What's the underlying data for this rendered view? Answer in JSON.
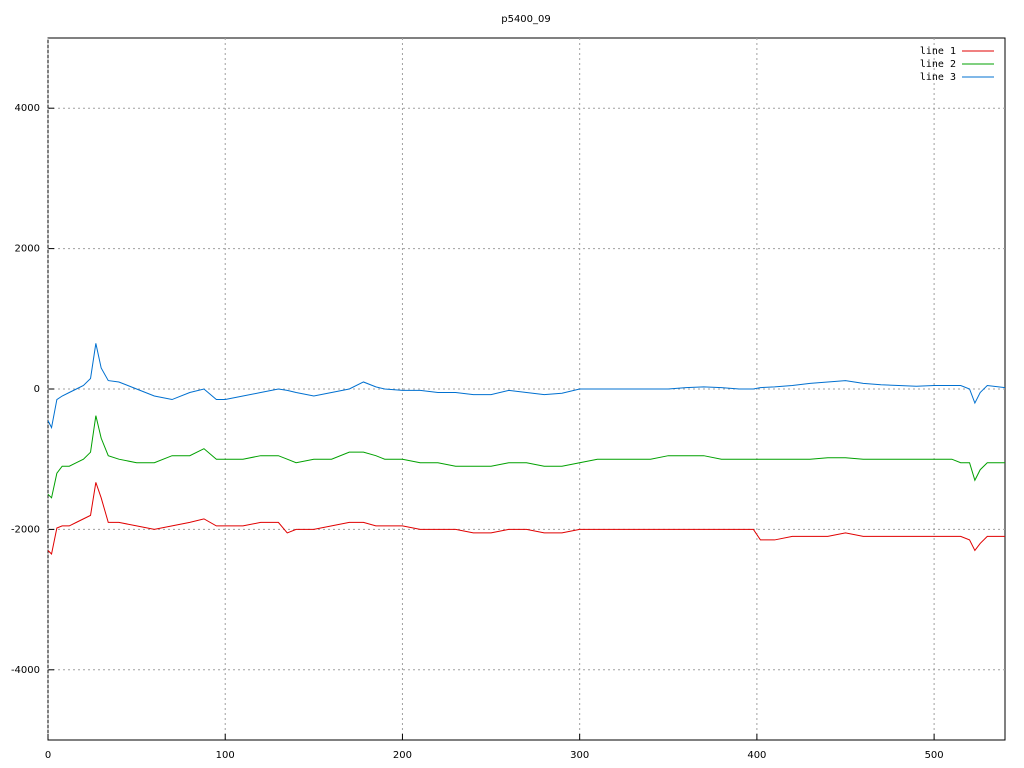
{
  "chart_data": {
    "type": "line",
    "title": "p5400_09",
    "x": [
      0,
      2,
      5,
      8,
      12,
      16,
      20,
      24,
      27,
      30,
      34,
      40,
      50,
      60,
      70,
      80,
      88,
      95,
      100,
      110,
      120,
      130,
      135,
      140,
      150,
      160,
      170,
      178,
      185,
      190,
      200,
      210,
      220,
      230,
      240,
      250,
      260,
      270,
      280,
      290,
      300,
      310,
      320,
      330,
      340,
      350,
      360,
      370,
      380,
      390,
      398,
      402,
      410,
      420,
      430,
      440,
      450,
      460,
      470,
      480,
      490,
      500,
      510,
      515,
      520,
      523,
      526,
      530,
      540
    ],
    "series": [
      {
        "name": "line 1",
        "color": "#e00000",
        "values": [
          -2300,
          -2350,
          -1980,
          -1950,
          -1950,
          -1900,
          -1850,
          -1800,
          -1330,
          -1550,
          -1900,
          -1900,
          -1950,
          -2000,
          -1950,
          -1900,
          -1850,
          -1950,
          -1950,
          -1950,
          -1900,
          -1900,
          -2050,
          -2000,
          -2000,
          -1950,
          -1900,
          -1900,
          -1950,
          -1950,
          -1950,
          -2000,
          -2000,
          -2000,
          -2050,
          -2050,
          -2000,
          -2000,
          -2050,
          -2050,
          -2000,
          -2000,
          -2000,
          -2000,
          -2000,
          -2000,
          -2000,
          -2000,
          -2000,
          -2000,
          -2000,
          -2150,
          -2150,
          -2100,
          -2100,
          -2100,
          -2050,
          -2100,
          -2100,
          -2100,
          -2100,
          -2100,
          -2100,
          -2100,
          -2150,
          -2300,
          -2200,
          -2100,
          -2100
        ]
      },
      {
        "name": "line 2",
        "color": "#00a000",
        "values": [
          -1500,
          -1550,
          -1200,
          -1100,
          -1100,
          -1050,
          -1000,
          -900,
          -380,
          -700,
          -950,
          -1000,
          -1050,
          -1050,
          -950,
          -950,
          -850,
          -1000,
          -1000,
          -1000,
          -950,
          -950,
          -1000,
          -1050,
          -1000,
          -1000,
          -900,
          -900,
          -950,
          -1000,
          -1000,
          -1050,
          -1050,
          -1100,
          -1100,
          -1100,
          -1050,
          -1050,
          -1100,
          -1100,
          -1050,
          -1000,
          -1000,
          -1000,
          -1000,
          -950,
          -950,
          -950,
          -1000,
          -1000,
          -1000,
          -1000,
          -1000,
          -1000,
          -1000,
          -980,
          -980,
          -1000,
          -1000,
          -1000,
          -1000,
          -1000,
          -1000,
          -1050,
          -1050,
          -1300,
          -1150,
          -1050,
          -1050
        ]
      },
      {
        "name": "line 3",
        "color": "#0070d0",
        "values": [
          -450,
          -550,
          -150,
          -100,
          -50,
          0,
          50,
          150,
          650,
          300,
          120,
          100,
          0,
          -100,
          -150,
          -50,
          0,
          -150,
          -150,
          -100,
          -50,
          0,
          -20,
          -50,
          -100,
          -50,
          0,
          100,
          30,
          0,
          -20,
          -20,
          -50,
          -50,
          -80,
          -80,
          -20,
          -50,
          -80,
          -60,
          0,
          0,
          0,
          0,
          0,
          0,
          20,
          30,
          20,
          0,
          0,
          20,
          30,
          50,
          80,
          100,
          120,
          80,
          60,
          50,
          40,
          50,
          50,
          50,
          0,
          -200,
          -50,
          50,
          20
        ]
      }
    ],
    "xlim": [
      0,
      540
    ],
    "ylim": [
      -5000,
      5000
    ],
    "xticks": [
      0,
      100,
      200,
      300,
      400,
      500
    ],
    "yticks": [
      -4000,
      -2000,
      0,
      2000,
      4000
    ],
    "grid": true,
    "legend": "top-right"
  }
}
